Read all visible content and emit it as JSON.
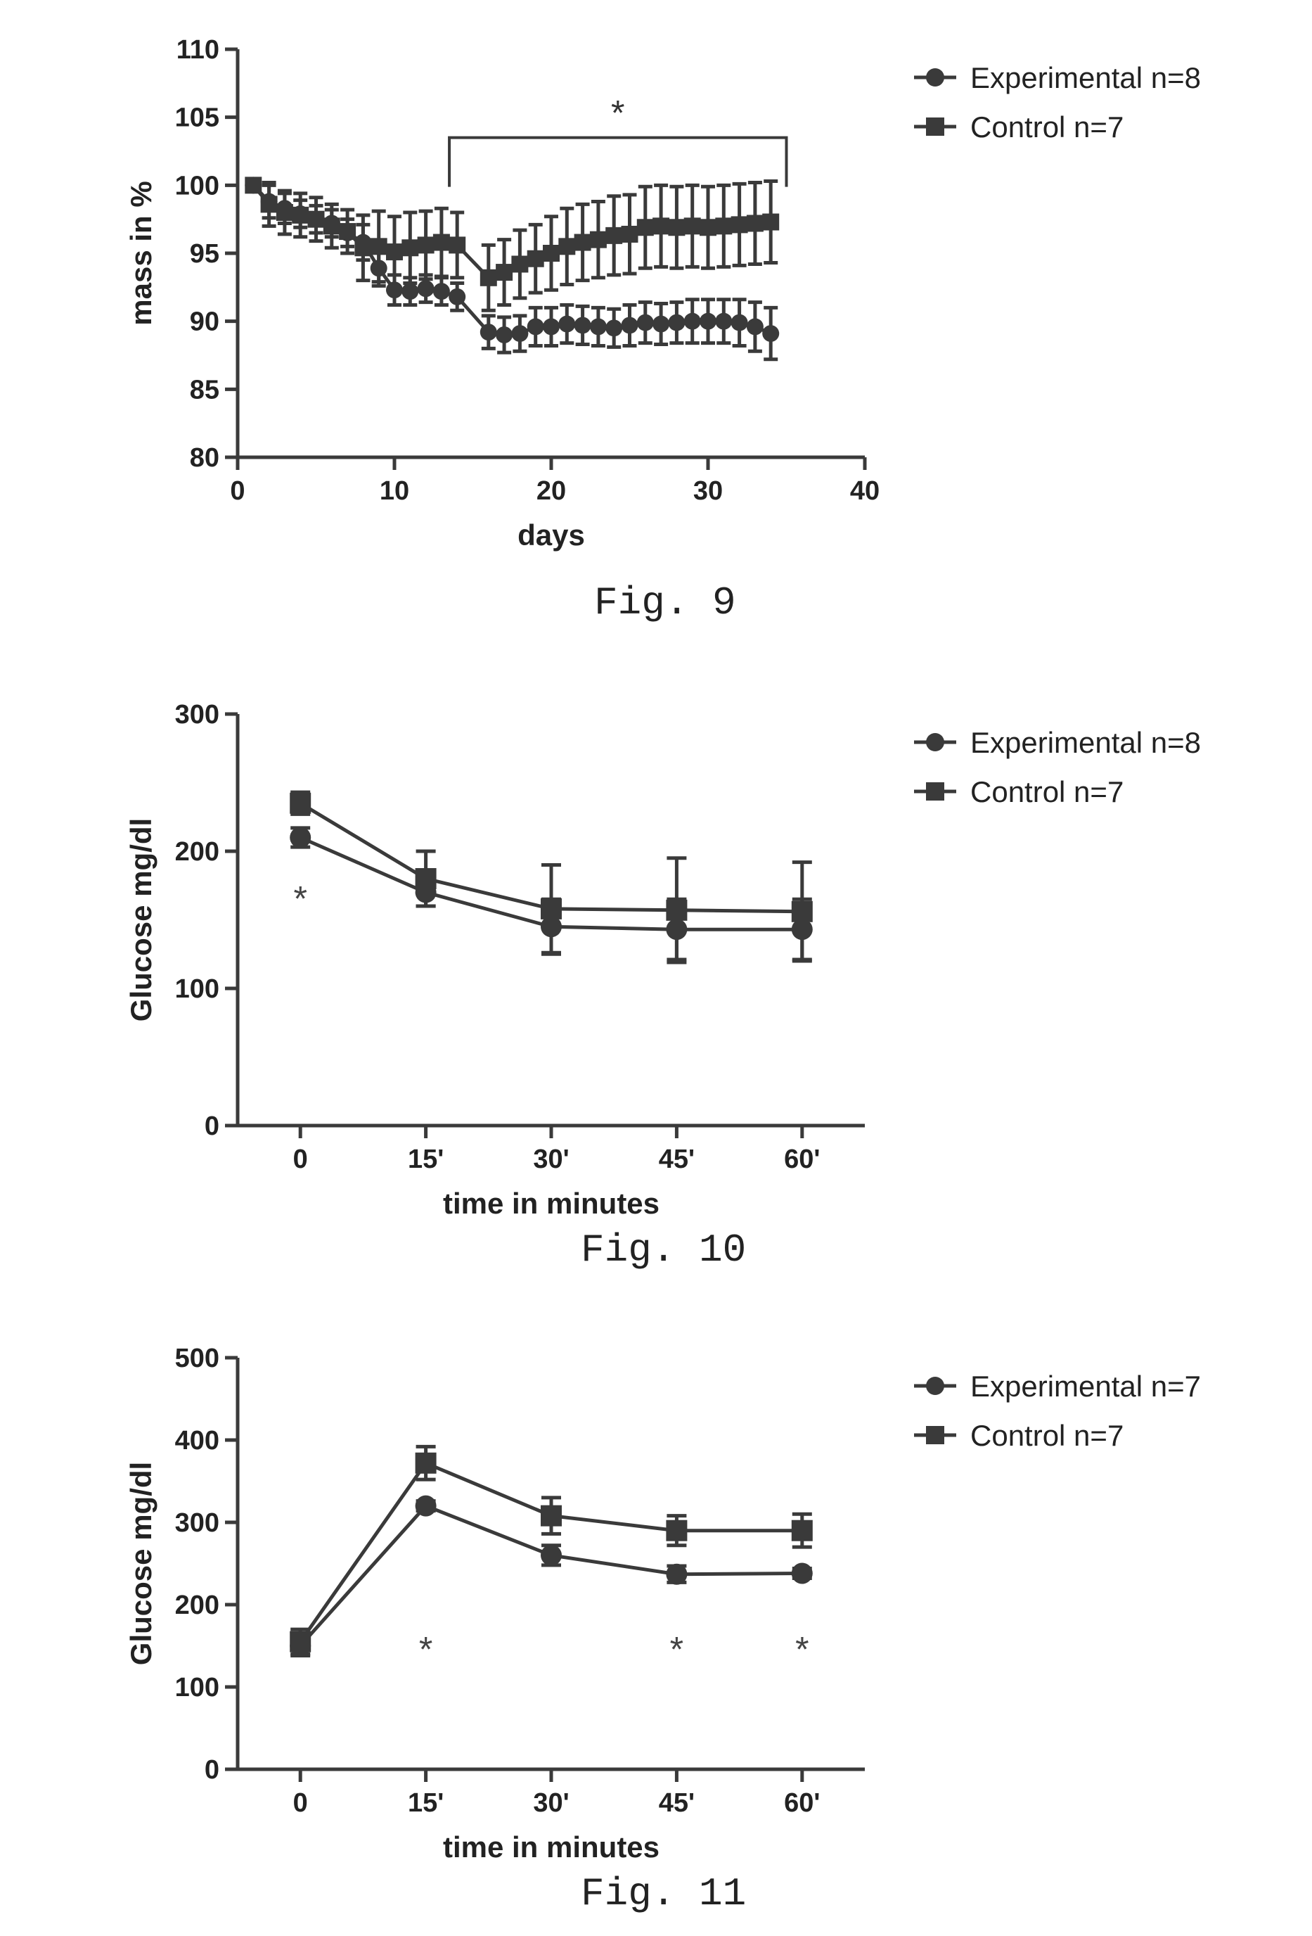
{
  "chart_data": [
    {
      "type": "line",
      "figure_caption": "Fig. 9",
      "xlabel": "days",
      "ylabel": "mass in %",
      "xlim": [
        0,
        40
      ],
      "ylim": [
        80,
        110
      ],
      "x_ticks": [
        0,
        10,
        20,
        30,
        40
      ],
      "x_tick_labels": [
        "0",
        "10",
        "20",
        "30",
        "40"
      ],
      "y_ticks": [
        80,
        85,
        90,
        95,
        100,
        105,
        110
      ],
      "y_tick_labels": [
        "80",
        "85",
        "90",
        "95",
        "100",
        "105",
        "110"
      ],
      "grid": false,
      "legend_placement": "right",
      "series": [
        {
          "name": "Experimental n=8",
          "marker": "circle",
          "x": [
            1,
            2,
            3,
            4,
            5,
            6,
            7,
            8,
            9,
            10,
            11,
            12,
            13,
            14,
            16,
            17,
            18,
            19,
            20,
            21,
            22,
            23,
            24,
            25,
            26,
            27,
            28,
            29,
            30,
            31,
            32,
            33,
            34
          ],
          "y": [
            100,
            98.8,
            98.3,
            97.9,
            97.5,
            97.2,
            96.5,
            95.8,
            93.9,
            92.3,
            92.2,
            92.4,
            92.2,
            91.8,
            89.2,
            89.0,
            89.1,
            89.6,
            89.6,
            89.8,
            89.7,
            89.6,
            89.5,
            89.7,
            89.9,
            89.8,
            89.9,
            90.0,
            90.0,
            90.0,
            89.9,
            89.6,
            89.1
          ],
          "err": [
            0,
            1.2,
            1.1,
            1.0,
            1.0,
            1.0,
            1.0,
            1.3,
            1.3,
            1.1,
            1.0,
            1.0,
            1.0,
            1.0,
            1.2,
            1.3,
            1.3,
            1.4,
            1.4,
            1.4,
            1.4,
            1.4,
            1.4,
            1.5,
            1.5,
            1.5,
            1.5,
            1.6,
            1.6,
            1.6,
            1.7,
            1.8,
            1.9
          ]
        },
        {
          "name": "Control n=7",
          "marker": "square",
          "x": [
            1,
            2,
            3,
            4,
            5,
            6,
            7,
            8,
            9,
            10,
            11,
            12,
            13,
            14,
            16,
            17,
            18,
            19,
            20,
            21,
            22,
            23,
            24,
            25,
            26,
            27,
            28,
            29,
            30,
            31,
            32,
            33,
            34
          ],
          "y": [
            100,
            98.6,
            98.0,
            97.8,
            97.5,
            97.0,
            96.6,
            95.4,
            95.5,
            95.1,
            95.4,
            95.6,
            95.8,
            95.6,
            93.2,
            93.6,
            94.2,
            94.6,
            95.0,
            95.5,
            95.8,
            96.0,
            96.3,
            96.4,
            96.9,
            97.0,
            96.9,
            97.0,
            96.9,
            97.0,
            97.1,
            97.2,
            97.3
          ],
          "err": [
            0,
            1.6,
            1.6,
            1.6,
            1.6,
            1.6,
            1.6,
            2.4,
            2.6,
            2.6,
            2.6,
            2.5,
            2.5,
            2.4,
            2.4,
            2.4,
            2.5,
            2.5,
            2.7,
            2.8,
            2.8,
            2.8,
            2.9,
            2.9,
            3.0,
            3.0,
            3.0,
            3.0,
            3.0,
            3.0,
            3.0,
            3.0,
            3.0
          ]
        }
      ],
      "annotations": [
        {
          "type": "bracket",
          "x_start": 13.5,
          "x_end": 35,
          "y": 103.5,
          "label": "*"
        }
      ]
    },
    {
      "type": "line",
      "figure_caption": "Fig. 10",
      "xlabel": "time in minutes",
      "ylabel": "Glucose mg/dl",
      "categories": [
        "0",
        "15'",
        "30'",
        "45'",
        "60'"
      ],
      "ylim": [
        0,
        300
      ],
      "y_ticks": [
        0,
        100,
        200,
        300
      ],
      "y_tick_labels": [
        "0",
        "100",
        "200",
        "300"
      ],
      "grid": false,
      "legend_placement": "right",
      "series": [
        {
          "name": "Experimental n=8",
          "marker": "circle",
          "values": [
            210,
            170,
            145,
            143,
            143
          ],
          "err": [
            7,
            10,
            20,
            22,
            22
          ]
        },
        {
          "name": "Control n=7",
          "marker": "square",
          "values": [
            235,
            180,
            158,
            157,
            156
          ],
          "err": [
            8,
            20,
            32,
            38,
            36
          ]
        }
      ],
      "annotations": [
        {
          "type": "star",
          "category_index": 0,
          "y": 168,
          "label": "*"
        }
      ]
    },
    {
      "type": "line",
      "figure_caption": "Fig. 11",
      "xlabel": "time in minutes",
      "ylabel": "Glucose mg/dl",
      "categories": [
        "0",
        "15'",
        "30'",
        "45'",
        "60'"
      ],
      "ylim": [
        0,
        500
      ],
      "y_ticks": [
        0,
        100,
        200,
        300,
        400,
        500
      ],
      "y_tick_labels": [
        "0",
        "100",
        "200",
        "300",
        "400",
        "500"
      ],
      "grid": false,
      "legend_placement": "right",
      "series": [
        {
          "name": "Experimental n=7",
          "marker": "circle",
          "values": [
            150,
            320,
            260,
            237,
            238
          ],
          "err": [
            12,
            6,
            12,
            10,
            6
          ]
        },
        {
          "name": "Control n=7",
          "marker": "square",
          "values": [
            155,
            372,
            308,
            290,
            290
          ],
          "err": [
            15,
            20,
            22,
            18,
            20
          ]
        }
      ],
      "annotations": [
        {
          "type": "star",
          "category_index": 1,
          "y": 150,
          "label": "*"
        },
        {
          "type": "star",
          "category_index": 3,
          "y": 150,
          "label": "*"
        },
        {
          "type": "star",
          "category_index": 4,
          "y": 150,
          "label": "*"
        }
      ]
    }
  ]
}
